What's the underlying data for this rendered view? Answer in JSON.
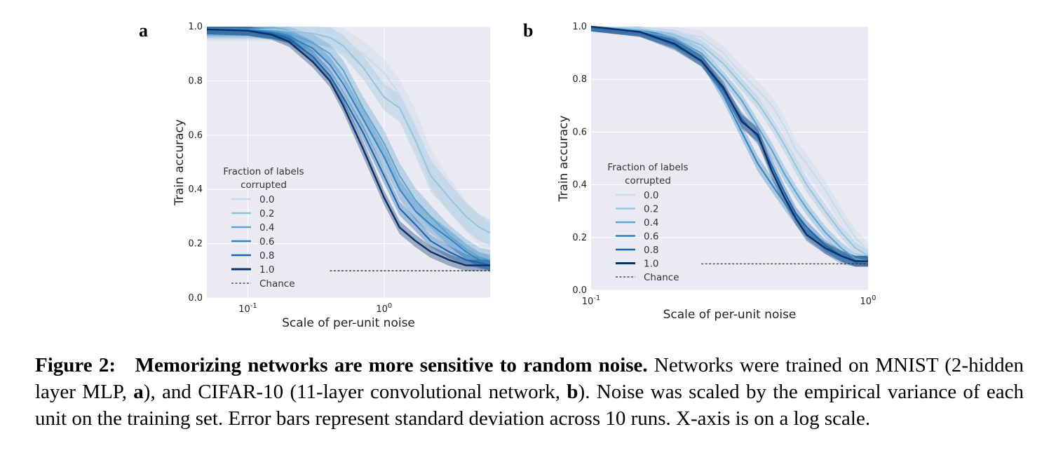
{
  "chart_data": [
    {
      "panel": "a",
      "type": "line",
      "xlabel": "Scale of per-unit noise",
      "ylabel": "Train accuracy",
      "xscale": "log",
      "xlim": [
        0.05,
        6
      ],
      "ylim": [
        0.0,
        1.0
      ],
      "xticks": [
        {
          "value": 0.1,
          "base": "10",
          "exp": "-1"
        },
        {
          "value": 1,
          "base": "10",
          "exp": "0"
        }
      ],
      "yticks": [
        "0.0",
        "0.2",
        "0.4",
        "0.6",
        "0.8",
        "1.0"
      ],
      "grid": true,
      "legend": {
        "title_line1": "Fraction of labels",
        "title_line2": "corrupted",
        "placement": "lower-left",
        "chance_label": "Chance"
      },
      "chance": {
        "value": 0.1,
        "x_range": [
          0.4,
          6
        ]
      },
      "x": [
        0.05,
        0.1,
        0.15,
        0.2,
        0.3,
        0.4,
        0.5,
        0.7,
        1.0,
        1.3,
        1.7,
        2.2,
        3.0,
        4.0,
        5.0,
        6.0
      ],
      "series": [
        {
          "name": "0.0",
          "color": "#c6dbef",
          "values": [
            0.99,
            0.99,
            0.99,
            0.985,
            0.98,
            0.97,
            0.95,
            0.9,
            0.83,
            0.75,
            0.63,
            0.48,
            0.38,
            0.3,
            0.25,
            0.22
          ],
          "band": 0.07
        },
        {
          "name": "0.2",
          "color": "#94c4df",
          "values": [
            0.99,
            0.99,
            0.99,
            0.985,
            0.975,
            0.96,
            0.93,
            0.85,
            0.74,
            0.7,
            0.58,
            0.45,
            0.37,
            0.3,
            0.26,
            0.24
          ],
          "band": 0.06
        },
        {
          "name": "0.4",
          "color": "#5ba3d0",
          "values": [
            0.99,
            0.99,
            0.985,
            0.975,
            0.94,
            0.9,
            0.84,
            0.7,
            0.57,
            0.45,
            0.36,
            0.3,
            0.23,
            0.18,
            0.15,
            0.14
          ],
          "band": 0.05
        },
        {
          "name": "0.6",
          "color": "#3282be",
          "values": [
            0.99,
            0.99,
            0.98,
            0.965,
            0.92,
            0.86,
            0.79,
            0.66,
            0.52,
            0.4,
            0.32,
            0.27,
            0.22,
            0.17,
            0.14,
            0.13
          ],
          "band": 0.04
        },
        {
          "name": "0.8",
          "color": "#1764ab",
          "values": [
            0.99,
            0.985,
            0.975,
            0.955,
            0.89,
            0.82,
            0.74,
            0.61,
            0.45,
            0.33,
            0.27,
            0.21,
            0.17,
            0.14,
            0.13,
            0.12
          ],
          "band": 0.03
        },
        {
          "name": "1.0",
          "color": "#08306b",
          "values": [
            0.99,
            0.985,
            0.97,
            0.945,
            0.87,
            0.8,
            0.71,
            0.55,
            0.37,
            0.26,
            0.21,
            0.17,
            0.14,
            0.12,
            0.12,
            0.12
          ],
          "band": 0.03
        }
      ]
    },
    {
      "panel": "b",
      "type": "line",
      "xlabel": "Scale of per-unit noise",
      "ylabel": "Train accuracy",
      "xscale": "log",
      "xlim": [
        0.1,
        1.0
      ],
      "ylim": [
        0.0,
        1.0
      ],
      "xticks": [
        {
          "value": 0.1,
          "base": "10",
          "exp": "-1"
        },
        {
          "value": 1,
          "base": "10",
          "exp": "0"
        }
      ],
      "yticks": [
        "0.0",
        "0.2",
        "0.4",
        "0.6",
        "0.8",
        "1.0"
      ],
      "grid": true,
      "legend": {
        "title_line1": "Fraction of labels",
        "title_line2": "corrupted",
        "placement": "lower-left",
        "chance_label": "Chance"
      },
      "chance": {
        "value": 0.1,
        "x_range": [
          0.25,
          1.0
        ]
      },
      "x": [
        0.1,
        0.15,
        0.2,
        0.25,
        0.3,
        0.35,
        0.4,
        0.45,
        0.5,
        0.55,
        0.6,
        0.7,
        0.8,
        0.9,
        1.0
      ],
      "series": [
        {
          "name": "0.0",
          "color": "#c6dbef",
          "values": [
            1.0,
            0.995,
            0.98,
            0.96,
            0.9,
            0.82,
            0.76,
            0.7,
            0.62,
            0.53,
            0.48,
            0.38,
            0.28,
            0.2,
            0.15
          ],
          "band": 0.04
        },
        {
          "name": "0.2",
          "color": "#94c4df",
          "values": [
            1.0,
            0.99,
            0.97,
            0.93,
            0.86,
            0.78,
            0.71,
            0.63,
            0.55,
            0.47,
            0.4,
            0.3,
            0.22,
            0.16,
            0.13
          ],
          "band": 0.03
        },
        {
          "name": "0.4",
          "color": "#5ba3d0",
          "values": [
            1.0,
            0.985,
            0.955,
            0.9,
            0.81,
            0.72,
            0.62,
            0.53,
            0.44,
            0.37,
            0.31,
            0.22,
            0.16,
            0.12,
            0.11
          ],
          "band": 0.03
        },
        {
          "name": "0.6",
          "color": "#3282be",
          "values": [
            1.0,
            0.98,
            0.94,
            0.88,
            0.74,
            0.6,
            0.48,
            0.4,
            0.33,
            0.27,
            0.22,
            0.16,
            0.12,
            0.11,
            0.11
          ],
          "band": 0.03
        },
        {
          "name": "0.8",
          "color": "#1764ab",
          "values": [
            1.0,
            0.98,
            0.93,
            0.87,
            0.76,
            0.65,
            0.58,
            0.47,
            0.37,
            0.29,
            0.24,
            0.17,
            0.13,
            0.11,
            0.11
          ],
          "band": 0.03
        },
        {
          "name": "1.0",
          "color": "#08306b",
          "values": [
            1.0,
            0.98,
            0.935,
            0.87,
            0.77,
            0.64,
            0.59,
            0.45,
            0.35,
            0.27,
            0.21,
            0.16,
            0.13,
            0.11,
            0.11
          ],
          "band": 0.03
        }
      ]
    }
  ],
  "caption": {
    "label": "Figure 2:",
    "title": "Memorizing networks are more sensitive to random noise.",
    "part1": " Networks were trained on MNIST (2-hidden layer MLP, ",
    "a": "a",
    "part2": "), and CIFAR-10 (11-layer convolutional network, ",
    "b": "b",
    "part3": ").  Noise was scaled by the empirical variance of each unit on the training set. Error bars represent standard deviation across 10 runs. X-axis is on a log scale."
  }
}
